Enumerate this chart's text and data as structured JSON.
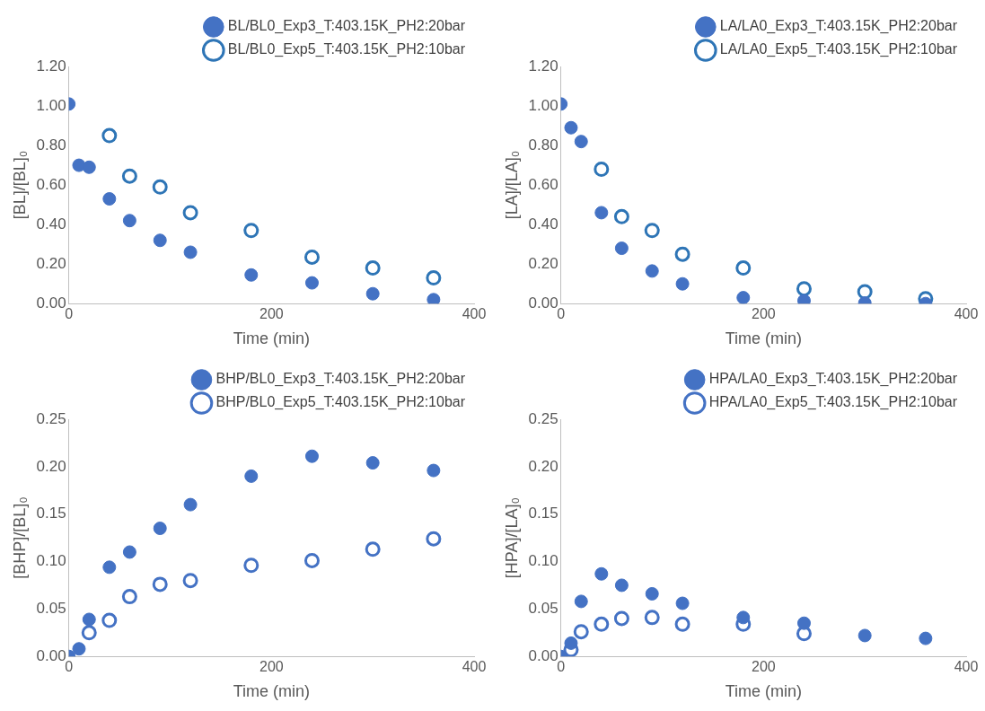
{
  "chart_data": [
    {
      "type": "scatter",
      "xlabel": "Time (min)",
      "ylabel": "[BL]/[BL]₀",
      "xlim": [
        0,
        400
      ],
      "xticks": [
        0,
        200,
        400
      ],
      "ylim": [
        0,
        1.2
      ],
      "yticks": [
        {
          "value": 0,
          "label": "0.00"
        },
        {
          "value": 0.2,
          "label": "0.20"
        },
        {
          "value": 0.4,
          "label": "0.40"
        },
        {
          "value": 0.6,
          "label": "0.60"
        },
        {
          "value": 0.8,
          "label": "0.80"
        },
        {
          "value": 1,
          "label": "1.00"
        },
        {
          "value": 1.2,
          "label": "1.20"
        }
      ],
      "grid": false,
      "legend": "top right",
      "marker": "circle",
      "series": [
        {
          "name": "BL/BL0_Exp3_T:403.15K_PH2:20bar",
          "color": "#4472c4",
          "x": [
            0,
            10,
            20,
            40,
            60,
            90,
            120,
            180,
            240,
            300,
            360
          ],
          "values": [
            1.01,
            0.7,
            0.69,
            0.53,
            0.42,
            0.32,
            0.26,
            0.145,
            0.105,
            0.05,
            0.02
          ]
        },
        {
          "name": "BL/BL0_Exp5_T:403.15K_PH2:10bar",
          "color": "#2e75b6",
          "x": [
            40,
            60,
            90,
            120,
            180,
            240,
            300,
            360
          ],
          "values": [
            0.85,
            0.645,
            0.59,
            0.46,
            0.37,
            0.235,
            0.18,
            0.13
          ]
        }
      ]
    },
    {
      "type": "scatter",
      "xlabel": "Time (min)",
      "ylabel": "[LA]/[LA]₀",
      "xlim": [
        0,
        400
      ],
      "xticks": [
        0,
        200,
        400
      ],
      "ylim": [
        0,
        1.2
      ],
      "yticks": [
        {
          "value": 0,
          "label": "0.00"
        },
        {
          "value": 0.2,
          "label": "0.20"
        },
        {
          "value": 0.4,
          "label": "0.40"
        },
        {
          "value": 0.6,
          "label": "0.60"
        },
        {
          "value": 0.8,
          "label": "0.80"
        },
        {
          "value": 1,
          "label": "1.00"
        },
        {
          "value": 1.2,
          "label": "1.20"
        }
      ],
      "grid": false,
      "legend": "top right",
      "marker": "circle",
      "series": [
        {
          "name": "LA/LA0_Exp3_T:403.15K_PH2:20bar",
          "color": "#4472c4",
          "x": [
            0,
            10,
            20,
            40,
            60,
            90,
            120,
            180,
            240,
            300,
            360
          ],
          "values": [
            1.01,
            0.89,
            0.82,
            0.46,
            0.28,
            0.165,
            0.1,
            0.03,
            0.015,
            0.003,
            0
          ]
        },
        {
          "name": "LA/LA0_Exp5_T:403.15K_PH2:10bar",
          "color": "#2e75b6",
          "x": [
            40,
            60,
            90,
            120,
            180,
            240,
            300,
            360
          ],
          "values": [
            0.68,
            0.44,
            0.37,
            0.25,
            0.18,
            0.075,
            0.06,
            0.025
          ]
        }
      ]
    },
    {
      "type": "scatter",
      "xlabel": "Time (min)",
      "ylabel": "[BHP]/[BL]₀",
      "xlim": [
        0,
        400
      ],
      "xticks": [
        0,
        200,
        400
      ],
      "ylim": [
        0,
        0.25
      ],
      "yticks": [
        {
          "value": 0,
          "label": "0.00"
        },
        {
          "value": 0.05,
          "label": "0.05"
        },
        {
          "value": 0.1,
          "label": "0.10"
        },
        {
          "value": 0.15,
          "label": "0.15"
        },
        {
          "value": 0.2,
          "label": "0.20"
        },
        {
          "value": 0.25,
          "label": "0.25"
        }
      ],
      "grid": false,
      "legend": "top right",
      "marker": "circle",
      "series": [
        {
          "name": "BHP/BL0_Exp3_T:403.15K_PH2:20bar",
          "color": "#4472c4",
          "x": [
            0,
            10,
            20,
            40,
            60,
            90,
            120,
            180,
            240,
            300,
            360
          ],
          "values": [
            0,
            0.008,
            0.039,
            0.094,
            0.11,
            0.135,
            0.16,
            0.19,
            0.211,
            0.204,
            0.196
          ]
        },
        {
          "name": "BHP/BL0_Exp5_T:403.15K_PH2:10bar",
          "color": "#4472c4",
          "x": [
            20,
            40,
            60,
            90,
            120,
            180,
            240,
            300,
            360
          ],
          "values": [
            0.025,
            0.038,
            0.063,
            0.076,
            0.08,
            0.096,
            0.101,
            0.113,
            0.124
          ]
        }
      ]
    },
    {
      "type": "scatter",
      "xlabel": "Time (min)",
      "ylabel": "[HPA]/[LA]₀",
      "xlim": [
        0,
        400
      ],
      "xticks": [
        0,
        200,
        400
      ],
      "ylim": [
        0,
        0.25
      ],
      "yticks": [
        {
          "value": 0,
          "label": "0.00"
        },
        {
          "value": 0.05,
          "label": "0.05"
        },
        {
          "value": 0.1,
          "label": "0.10"
        },
        {
          "value": 0.15,
          "label": "0.15"
        },
        {
          "value": 0.2,
          "label": "0.20"
        },
        {
          "value": 0.25,
          "label": "0.25"
        }
      ],
      "grid": false,
      "legend": "top right",
      "marker": "circle",
      "series": [
        {
          "name": "HPA/LA0_Exp3_T:403.15K_PH2:20bar",
          "color": "#4472c4",
          "x": [
            0,
            10,
            20,
            40,
            60,
            90,
            120,
            180,
            240,
            300,
            360
          ],
          "values": [
            0,
            0.014,
            0.058,
            0.087,
            0.075,
            0.066,
            0.056,
            0.041,
            0.035,
            0.022,
            0.019
          ]
        },
        {
          "name": "HPA/LA0_Exp5_T:403.15K_PH2:10bar",
          "color": "#4472c4",
          "x": [
            10,
            20,
            40,
            60,
            90,
            120,
            180,
            240
          ],
          "values": [
            0.007,
            0.026,
            0.034,
            0.04,
            0.041,
            0.034,
            0.034,
            0.024
          ]
        }
      ]
    }
  ]
}
